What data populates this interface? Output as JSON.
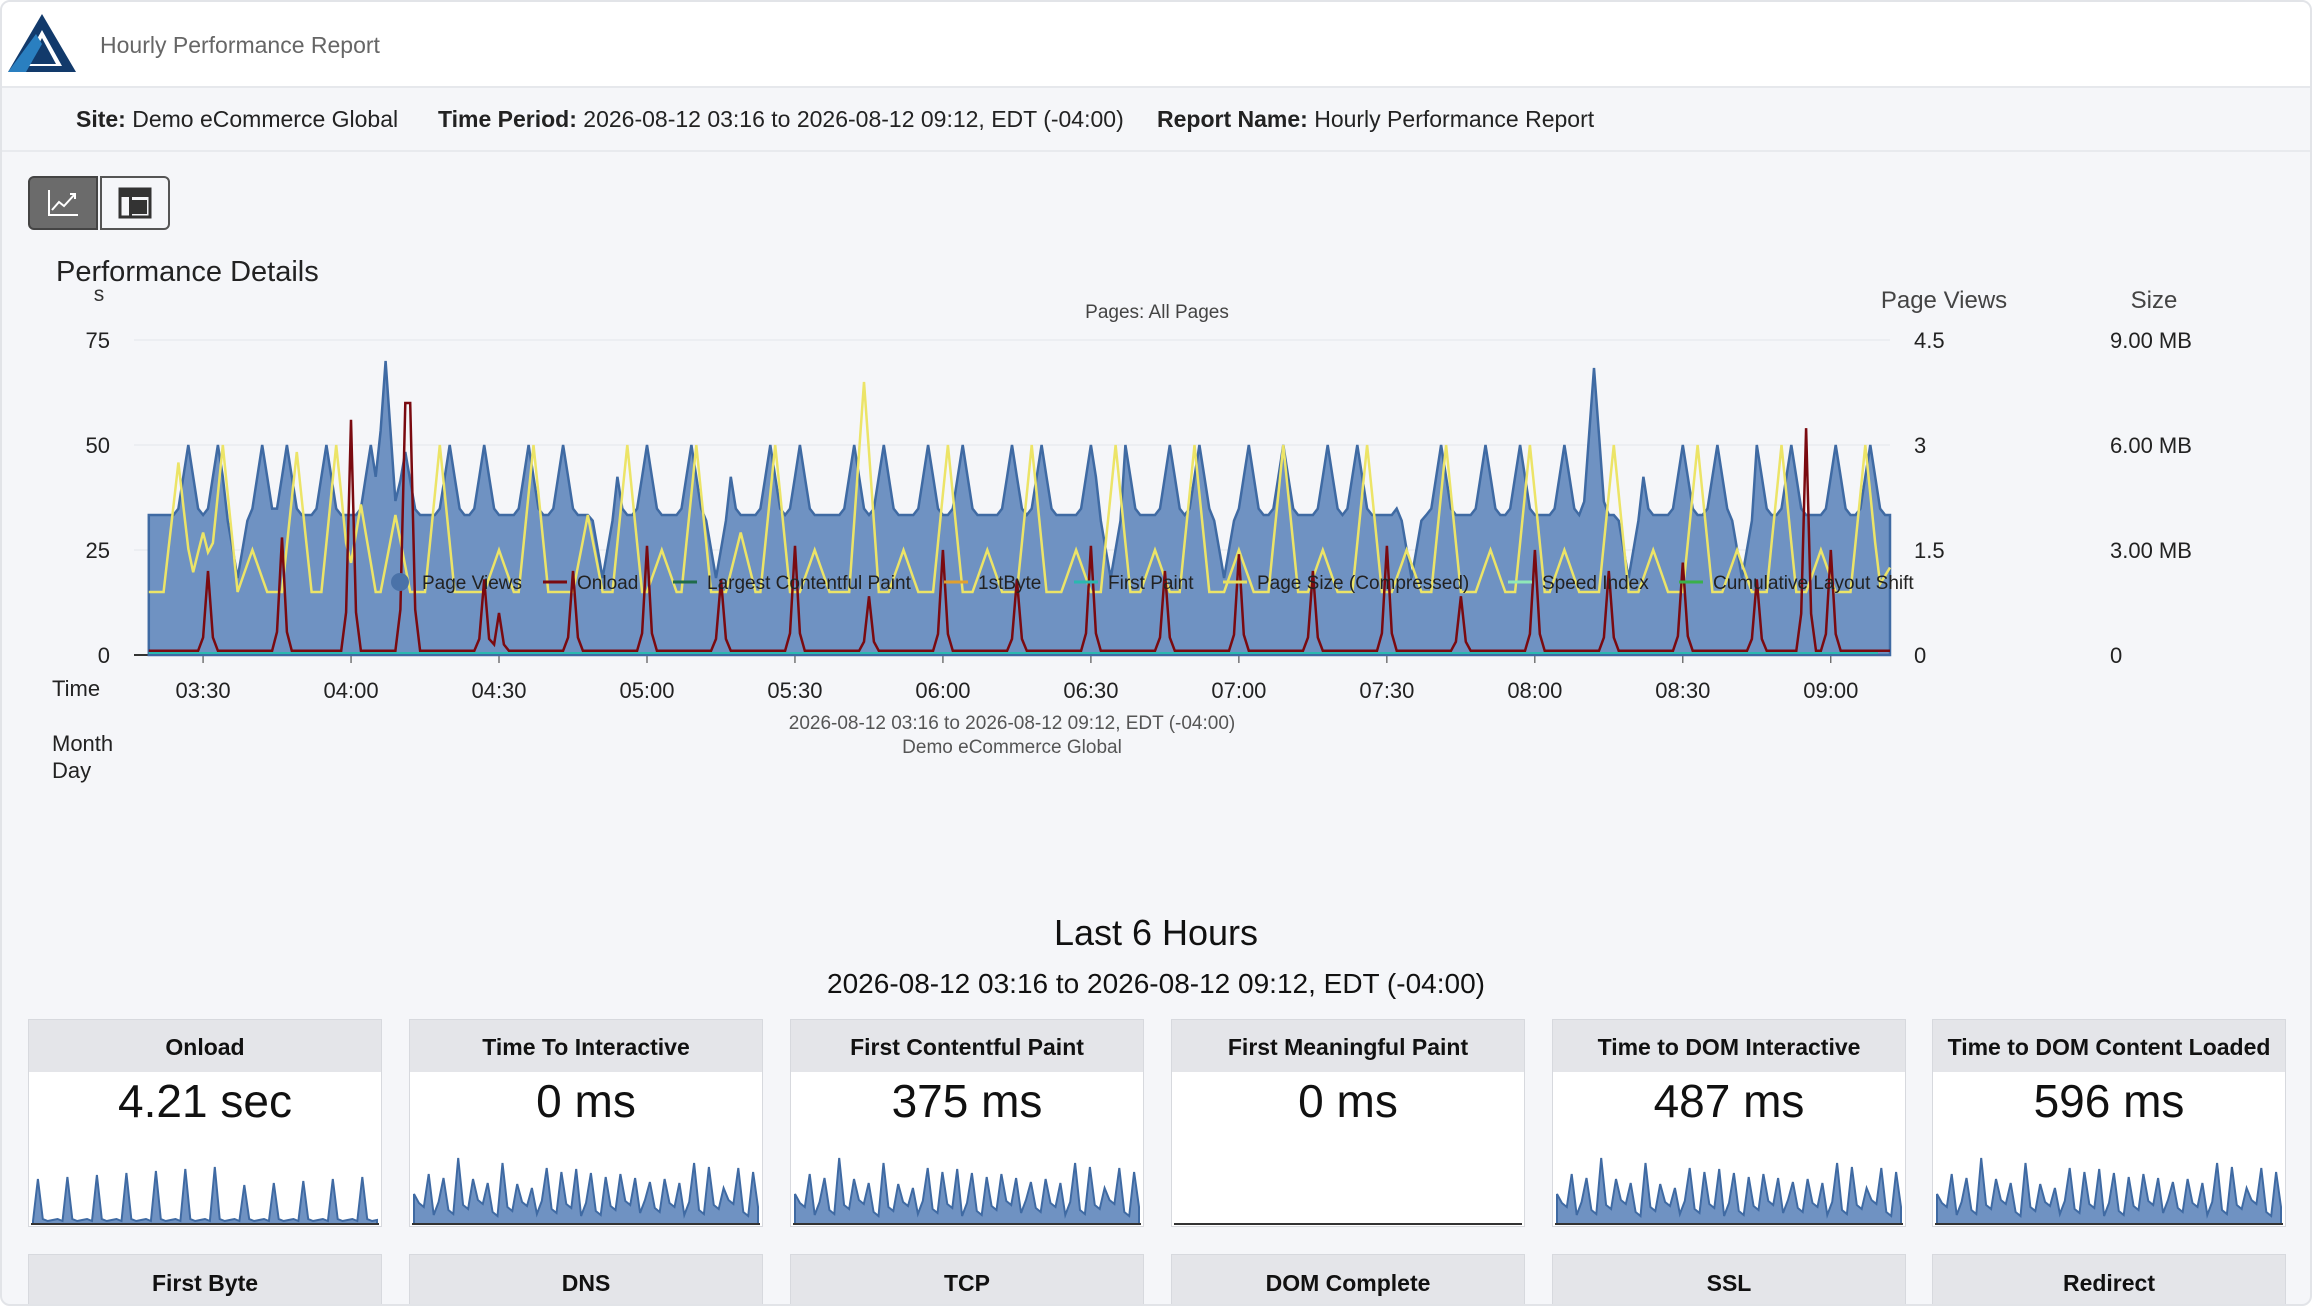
{
  "app": {
    "title": "Hourly Performance Report",
    "logo_icon": "triangle-logo-icon"
  },
  "info": {
    "site_label": "Site:",
    "site_value": "Demo eCommerce Global",
    "period_label": "Time Period:",
    "period_value": "2026-08-12 03:16 to 2026-08-12 09:12, EDT (-04:00)",
    "report_label": "Report Name:",
    "report_value": "Hourly Performance Report"
  },
  "view_buttons": [
    {
      "icon": "line-chart-icon",
      "active": true
    },
    {
      "icon": "table-icon",
      "active": false
    }
  ],
  "section": {
    "title": "Performance Details"
  },
  "chart_data": {
    "type": "area",
    "subtitle": "Pages: All Pages",
    "left_axis": {
      "unit": "s",
      "ticks": [
        "0",
        "25",
        "50",
        "75"
      ],
      "range": [
        0,
        75
      ]
    },
    "right_axis_views": {
      "title": "Page Views",
      "ticks": [
        "0",
        "1.5",
        "3",
        "4.5"
      ],
      "range": [
        0,
        4.5
      ]
    },
    "right_axis_size": {
      "title": "Size",
      "ticks": [
        "0",
        "3.00 MB",
        "6.00 MB",
        "9.00 MB"
      ],
      "range": [
        0,
        9
      ]
    },
    "x_axis": {
      "row_labels": [
        "Time",
        "Month",
        "Day"
      ],
      "ticks": [
        "03:30",
        "04:00",
        "04:30",
        "05:00",
        "05:30",
        "06:00",
        "06:30",
        "07:00",
        "07:30",
        "08:00",
        "08:30",
        "09:00"
      ],
      "caption_1": "2026-08-12 03:16 to 2026-08-12 09:12, EDT (-04:00)",
      "caption_2": "Demo eCommerce Global"
    },
    "grid": true,
    "legend_position": "bottom",
    "legend": [
      {
        "name": "Page Views",
        "color": "#4a72a8",
        "marker": "dot"
      },
      {
        "name": "Onload",
        "color": "#7a0a10",
        "marker": "line"
      },
      {
        "name": "Largest Contentful Paint",
        "color": "#1f6b4a",
        "marker": "line"
      },
      {
        "name": "1stByte",
        "color": "#e0a030",
        "marker": "line"
      },
      {
        "name": "First Paint",
        "color": "#2ab8b0",
        "marker": "line"
      },
      {
        "name": "Page Size (Compressed)",
        "color": "#e8e060",
        "marker": "line"
      },
      {
        "name": "Speed Index",
        "color": "#8fe8b8",
        "marker": "line"
      },
      {
        "name": "Cumulative Layout Shift",
        "color": "#3ab04a",
        "marker": "line"
      }
    ],
    "series": [
      {
        "name": "Page Views",
        "start_time": "03:19",
        "step_minutes": 1,
        "base": 2,
        "peaks": [
          [
            "03:27",
            3
          ],
          [
            "03:33",
            3
          ],
          [
            "03:42",
            3
          ],
          [
            "03:47",
            3
          ],
          [
            "03:55",
            3
          ],
          [
            "04:04",
            3
          ],
          [
            "04:07",
            4.2
          ],
          [
            "04:11",
            2.9
          ],
          [
            "04:20",
            3
          ],
          [
            "04:27",
            3
          ],
          [
            "04:36",
            3
          ],
          [
            "04:43",
            3
          ],
          [
            "04:53",
            3
          ],
          [
            "05:00",
            3
          ],
          [
            "05:09",
            3
          ],
          [
            "05:16",
            3
          ],
          [
            "05:25",
            3
          ],
          [
            "05:31",
            3
          ],
          [
            "05:42",
            3
          ],
          [
            "05:48",
            3
          ],
          [
            "05:57",
            3
          ],
          [
            "06:04",
            3
          ],
          [
            "06:14",
            3
          ],
          [
            "06:20",
            3
          ],
          [
            "06:30",
            3
          ],
          [
            "06:37",
            3
          ],
          [
            "06:46",
            3
          ],
          [
            "06:52",
            3
          ],
          [
            "07:02",
            3
          ],
          [
            "07:09",
            3
          ],
          [
            "07:18",
            3
          ],
          [
            "07:24",
            3
          ],
          [
            "07:34",
            3
          ],
          [
            "07:41",
            3
          ],
          [
            "07:50",
            3
          ],
          [
            "07:57",
            3
          ],
          [
            "08:06",
            3
          ],
          [
            "08:12",
            4.1
          ],
          [
            "08:21",
            3
          ],
          [
            "08:30",
            3
          ],
          [
            "08:37",
            3
          ],
          [
            "08:45",
            3
          ],
          [
            "08:52",
            3
          ],
          [
            "09:01",
            3
          ],
          [
            "09:08",
            3
          ]
        ],
        "dips": [
          [
            "03:37",
            1.1
          ],
          [
            "04:51",
            1.1
          ],
          [
            "05:14",
            1.1
          ],
          [
            "06:34",
            1.1
          ],
          [
            "06:57",
            1.1
          ],
          [
            "07:35",
            1.1
          ],
          [
            "08:19",
            1.1
          ],
          [
            "08:42",
            1.1
          ]
        ]
      },
      {
        "name": "Onload",
        "base": 1,
        "peaks": [
          [
            "03:31",
            20
          ],
          [
            "03:46",
            28
          ],
          [
            "04:00",
            56
          ],
          [
            "04:11",
            60
          ],
          [
            "04:12",
            60
          ],
          [
            "04:27",
            18
          ],
          [
            "04:30",
            10
          ],
          [
            "04:45",
            20
          ],
          [
            "05:00",
            26
          ],
          [
            "05:15",
            18
          ],
          [
            "05:30",
            26
          ],
          [
            "05:45",
            14
          ],
          [
            "06:00",
            25
          ],
          [
            "06:15",
            18
          ],
          [
            "06:30",
            26
          ],
          [
            "06:45",
            20
          ],
          [
            "07:00",
            24
          ],
          [
            "07:15",
            20
          ],
          [
            "07:30",
            26
          ],
          [
            "07:45",
            14
          ],
          [
            "08:00",
            25
          ],
          [
            "08:15",
            20
          ],
          [
            "08:30",
            22
          ],
          [
            "08:45",
            18
          ],
          [
            "08:55",
            54
          ],
          [
            "09:00",
            25
          ]
        ]
      },
      {
        "name": "Page Size (Compressed)",
        "unit": "MB",
        "base": 1.8,
        "peaks": [
          [
            "03:20",
            1.5
          ],
          [
            "03:25",
            5.5
          ],
          [
            "03:30",
            3.5
          ],
          [
            "03:34",
            6.0
          ],
          [
            "03:40",
            3.0
          ],
          [
            "03:49",
            5.8
          ],
          [
            "03:57",
            6.0
          ],
          [
            "04:02",
            4.3
          ],
          [
            "04:09",
            4.0
          ],
          [
            "04:18",
            6.0
          ],
          [
            "04:30",
            3.0
          ],
          [
            "04:37",
            6.0
          ],
          [
            "04:48",
            4.0
          ],
          [
            "04:56",
            6.0
          ],
          [
            "05:03",
            3.0
          ],
          [
            "05:10",
            6.0
          ],
          [
            "05:19",
            3.5
          ],
          [
            "05:26",
            6.0
          ],
          [
            "05:34",
            3.0
          ],
          [
            "05:44",
            7.8
          ],
          [
            "05:52",
            3.0
          ],
          [
            "06:01",
            6.0
          ],
          [
            "06:09",
            3.0
          ],
          [
            "06:18",
            6.0
          ],
          [
            "06:27",
            3.0
          ],
          [
            "06:35",
            6.0
          ],
          [
            "06:43",
            3.0
          ],
          [
            "06:51",
            6.0
          ],
          [
            "07:00",
            3.0
          ],
          [
            "07:09",
            6.0
          ],
          [
            "07:17",
            3.0
          ],
          [
            "07:26",
            6.0
          ],
          [
            "07:34",
            3.0
          ],
          [
            "07:42",
            6.0
          ],
          [
            "07:51",
            3.0
          ],
          [
            "07:59",
            6.0
          ],
          [
            "08:06",
            3.0
          ],
          [
            "08:16",
            6.0
          ],
          [
            "08:24",
            3.0
          ],
          [
            "08:33",
            6.0
          ],
          [
            "08:41",
            3.0
          ],
          [
            "08:50",
            6.0
          ],
          [
            "08:58",
            3.0
          ],
          [
            "09:07",
            6.0
          ],
          [
            "09:12",
            2.5
          ]
        ]
      }
    ]
  },
  "kpi_header": {
    "title": "Last 6 Hours",
    "range": "2026-08-12 03:16 to 2026-08-12 09:12, EDT (-04:00)"
  },
  "kpis": [
    {
      "title": "Onload",
      "value": "4.21 sec",
      "spark": "sparse"
    },
    {
      "title": "Time To Interactive",
      "value": "0 ms",
      "spark": "dense"
    },
    {
      "title": "First Contentful Paint",
      "value": "375 ms",
      "spark": "dense"
    },
    {
      "title": "First Meaningful Paint",
      "value": "0 ms",
      "spark": "flat"
    },
    {
      "title": "Time to DOM Interactive",
      "value": "487 ms",
      "spark": "dense"
    },
    {
      "title": "Time to DOM Content Loaded",
      "value": "596 ms",
      "spark": "dense"
    }
  ],
  "kpis_row2": [
    {
      "title": "First Byte"
    },
    {
      "title": "DNS"
    },
    {
      "title": "TCP"
    },
    {
      "title": "DOM Complete"
    },
    {
      "title": "SSL"
    },
    {
      "title": "Redirect"
    }
  ]
}
